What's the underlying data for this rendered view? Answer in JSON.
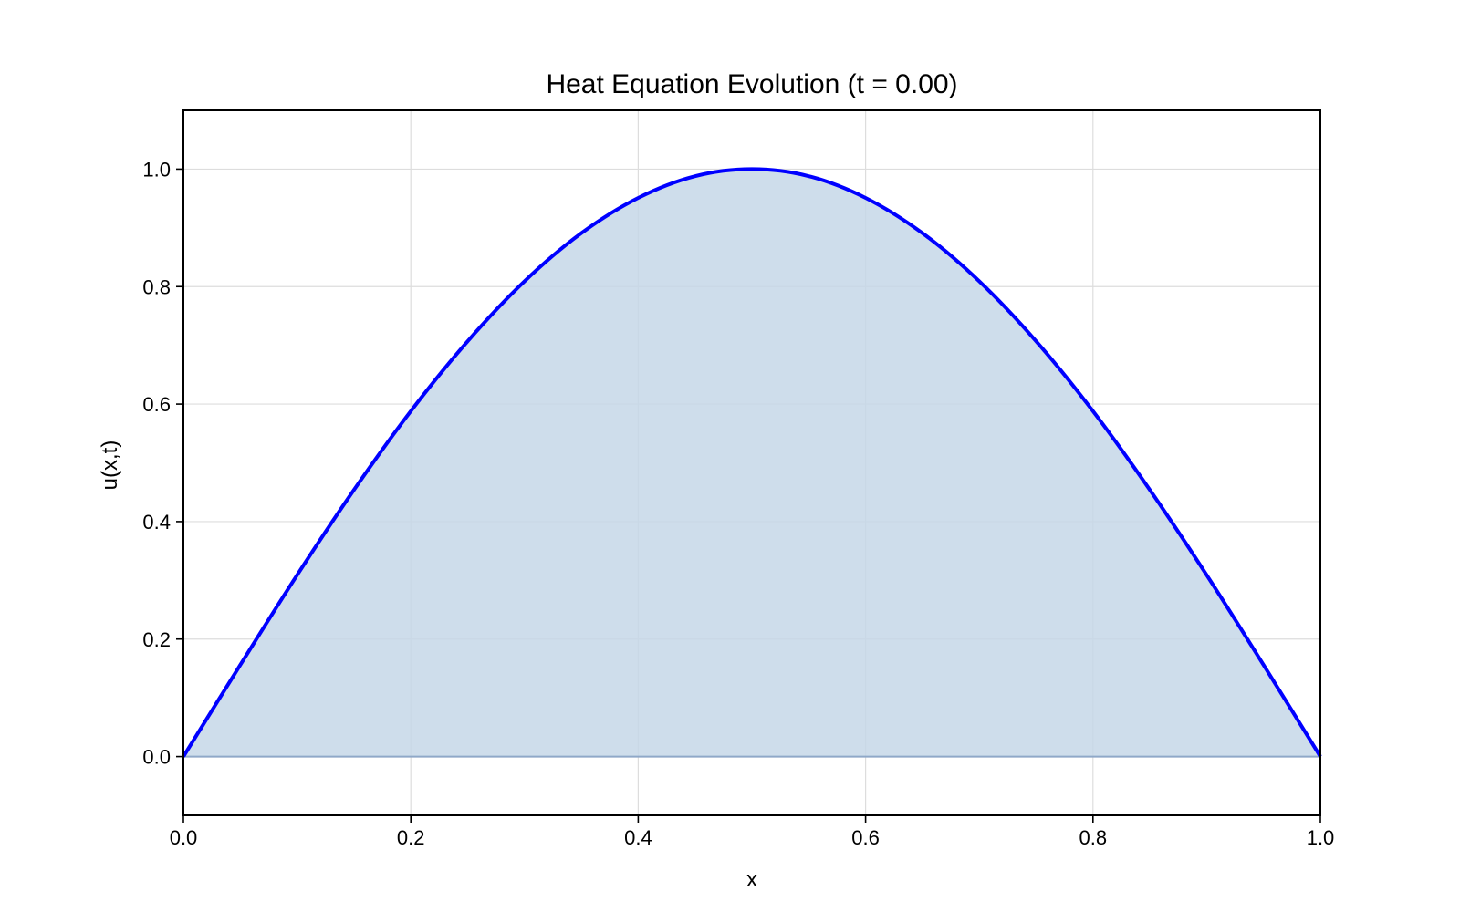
{
  "chart_data": {
    "type": "line",
    "title": "Heat Equation Evolution (t = 0.00)",
    "xlabel": "x",
    "ylabel": "u(x,t)",
    "xlim": [
      0.0,
      1.0
    ],
    "ylim": [
      -0.1,
      1.1
    ],
    "grid": true,
    "x_ticks": [
      "0.0",
      "0.2",
      "0.4",
      "0.6",
      "0.8",
      "1.0"
    ],
    "y_ticks": [
      "0.0",
      "0.2",
      "0.4",
      "0.6",
      "0.8",
      "1.0"
    ],
    "series": [
      {
        "x": [
          0.0,
          0.05,
          0.1,
          0.15,
          0.2,
          0.25,
          0.3,
          0.35,
          0.4,
          0.45,
          0.5,
          0.55,
          0.6,
          0.65,
          0.7,
          0.75,
          0.8,
          0.85,
          0.9,
          0.95,
          1.0
        ],
        "values": [
          0.0,
          0.156,
          0.309,
          0.454,
          0.588,
          0.707,
          0.809,
          0.891,
          0.951,
          0.988,
          1.0,
          0.988,
          0.951,
          0.891,
          0.809,
          0.707,
          0.588,
          0.454,
          0.309,
          0.156,
          0.0
        ],
        "color": "#0000ff",
        "fill_color": "#c6d7e7"
      }
    ]
  }
}
